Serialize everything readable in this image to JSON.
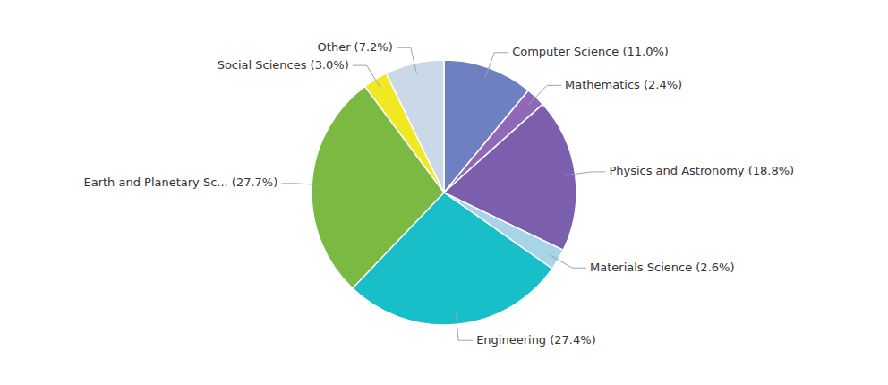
{
  "chart_data": {
    "type": "pie",
    "categories": [
      "Computer Science (11.0%)",
      "Mathematics (2.4%)",
      "Physics and Astronomy (18.8%)",
      "Materials Science (2.6%)",
      "Engineering (27.4%)",
      "Earth and Planetary Sc... (27.7%)",
      "Social Sciences (3.0%)",
      "Other (7.2%)"
    ],
    "values": [
      11.0,
      2.4,
      18.8,
      2.6,
      27.4,
      27.7,
      3.0,
      7.2
    ],
    "colors": [
      "#6e7fc2",
      "#9068b8",
      "#7b5fae",
      "#a8d4e8",
      "#18bec8",
      "#7aba42",
      "#f0e820",
      "#cad8e8"
    ]
  }
}
